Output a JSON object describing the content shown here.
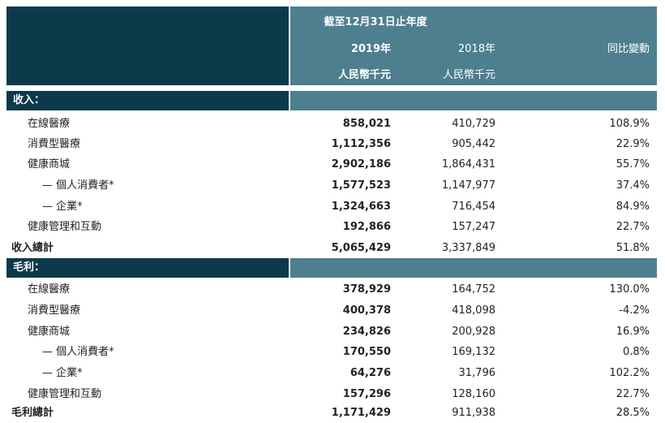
{
  "header": {
    "period": "截至12月31日止年度",
    "col_2019": "2019年",
    "col_2018": "2018年",
    "col_yoy": "同比變動",
    "unit_2019": "人民幣千元",
    "unit_2018": "人民幣千元"
  },
  "sections": [
    {
      "title": "收入：",
      "rows": [
        {
          "label": "在線醫療",
          "v2019": "858,021",
          "v2018": "410,729",
          "yoy": "108.9%",
          "kind": "item"
        },
        {
          "label": "消費型醫療",
          "v2019": "1,112,356",
          "v2018": "905,442",
          "yoy": "22.9%",
          "kind": "item"
        },
        {
          "label": "健康商城",
          "v2019": "2,902,186",
          "v2018": "1,864,431",
          "yoy": "55.7%",
          "kind": "item"
        },
        {
          "label": "— 個人消費者*",
          "v2019": "1,577,523",
          "v2018": "1,147,977",
          "yoy": "37.4%",
          "kind": "sub"
        },
        {
          "label": "— 企業*",
          "v2019": "1,324,663",
          "v2018": "716,454",
          "yoy": "84.9%",
          "kind": "sub"
        },
        {
          "label": "健康管理和互動",
          "v2019": "192,866",
          "v2018": "157,247",
          "yoy": "22.7%",
          "kind": "item"
        },
        {
          "label": "收入總計",
          "v2019": "5,065,429",
          "v2018": "3,337,849",
          "yoy": "51.8%",
          "kind": "total"
        }
      ]
    },
    {
      "title": "毛利：",
      "rows": [
        {
          "label": "在線醫療",
          "v2019": "378,929",
          "v2018": "164,752",
          "yoy": "130.0%",
          "kind": "item"
        },
        {
          "label": "消費型醫療",
          "v2019": "400,378",
          "v2018": "418,098",
          "yoy": "-4.2%",
          "kind": "item"
        },
        {
          "label": "健康商城",
          "v2019": "234,826",
          "v2018": "200,928",
          "yoy": "16.9%",
          "kind": "item"
        },
        {
          "label": "— 個人消費者*",
          "v2019": "170,550",
          "v2018": "169,132",
          "yoy": "0.8%",
          "kind": "sub"
        },
        {
          "label": "— 企業*",
          "v2019": "64,276",
          "v2018": "31,796",
          "yoy": "102.2%",
          "kind": "sub"
        },
        {
          "label": "健康管理和互動",
          "v2019": "157,296",
          "v2018": "128,160",
          "yoy": "22.7%",
          "kind": "item"
        },
        {
          "label": "毛利總計",
          "v2019": "1,171,429",
          "v2018": "911,938",
          "yoy": "28.5%",
          "kind": "total"
        }
      ]
    }
  ]
}
